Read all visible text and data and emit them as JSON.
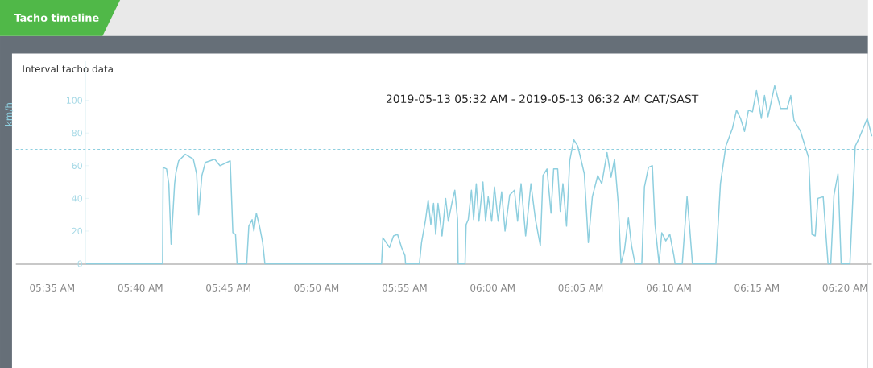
{
  "chart_data": {
    "type": "line",
    "title": "Interval tacho data",
    "subtitle": "2019-05-13 05:32 AM  -  2019-05-13 06:32 AM CAT/SAST",
    "ylabel": "km/h",
    "annotations": [
      "Tacho timeline"
    ],
    "xlim": [
      5.5489,
      6.3587
    ],
    "ylim": [
      0,
      124
    ],
    "xticks": [
      {
        "value": 5.5833,
        "label": "05:35 AM"
      },
      {
        "value": 5.6667,
        "label": "05:40 AM"
      },
      {
        "value": 5.75,
        "label": "05:45 AM"
      },
      {
        "value": 5.8333,
        "label": "05:50 AM"
      },
      {
        "value": 5.9167,
        "label": "05:55 AM"
      },
      {
        "value": 6.0,
        "label": "06:00 AM"
      },
      {
        "value": 6.0833,
        "label": "06:05 AM"
      },
      {
        "value": 6.1667,
        "label": "06:10 AM"
      },
      {
        "value": 6.25,
        "label": "06:15 AM"
      },
      {
        "value": 6.3333,
        "label": "06:20 AM"
      }
    ],
    "yticks": [
      0,
      20,
      40,
      60,
      80,
      100
    ],
    "ref_lines": [
      {
        "axis": "y",
        "value": 70,
        "color": "#8ecfdf",
        "line_style": "dashed"
      }
    ],
    "series": [
      {
        "color": "#8ecfdf",
        "x": [
          5.6153,
          5.6877,
          5.6883,
          5.6915,
          5.6936,
          5.6958,
          5.6991,
          5.7004,
          5.7029,
          5.7092,
          5.7168,
          5.7199,
          5.7218,
          5.7249,
          5.7282,
          5.737,
          5.742,
          5.7517,
          5.7542,
          5.7567,
          5.7582,
          5.7673,
          5.7693,
          5.7724,
          5.7741,
          5.7764,
          5.7794,
          5.7824,
          5.7845,
          5.8949,
          5.8961,
          5.9024,
          5.9062,
          5.91,
          5.9138,
          5.917,
          5.9176,
          5.9307,
          5.9327,
          5.9365,
          5.939,
          5.9415,
          5.9441,
          5.9461,
          5.9483,
          5.9521,
          5.9555,
          5.958,
          5.9617,
          5.9642,
          5.9668,
          5.9673,
          5.9739,
          5.9749,
          5.9769,
          5.9799,
          5.982,
          5.9845,
          5.987,
          5.9908,
          5.9933,
          5.9958,
          5.9991,
          6.0017,
          6.0052,
          6.0085,
          6.0117,
          6.0161,
          6.0206,
          6.0236,
          6.0269,
          6.0312,
          6.0362,
          6.0405,
          6.0451,
          6.0476,
          6.0514,
          6.0552,
          6.0577,
          6.0615,
          6.064,
          6.0665,
          6.0699,
          6.0729,
          6.0767,
          6.0805,
          6.0842,
          6.0867,
          6.0905,
          6.0943,
          6.0994,
          6.1032,
          6.1082,
          6.112,
          6.1153,
          6.1188,
          6.1214,
          6.1246,
          6.1284,
          6.1314,
          6.1347,
          6.1411,
          6.1436,
          6.1474,
          6.1511,
          6.1536,
          6.1574,
          6.16,
          6.1638,
          6.1676,
          6.1714,
          6.1726,
          6.1794,
          6.1839,
          6.1865,
          6.189,
          6.2112,
          6.2155,
          6.2206,
          6.2269,
          6.2307,
          6.2345,
          6.2383,
          6.242,
          6.2458,
          6.2496,
          6.2542,
          6.2572,
          6.2605,
          6.2668,
          6.2724,
          6.2786,
          6.282,
          6.285,
          6.2913,
          6.2989,
          6.3021,
          6.3052,
          6.3077,
          6.3127,
          6.3173,
          6.3199,
          6.3229,
          6.3267,
          6.3297,
          6.338,
          6.343,
          6.3468,
          6.3544,
          6.3587
        ],
        "values": [
          0,
          0,
          59,
          58,
          49,
          12,
          49,
          56,
          63,
          67,
          64,
          55,
          30,
          54,
          62,
          64,
          60,
          63,
          19,
          18,
          0,
          0,
          23,
          27,
          20,
          31,
          23,
          13,
          0,
          0,
          16,
          10,
          17,
          18,
          10,
          5,
          0,
          0,
          13,
          27,
          39,
          24,
          37,
          18,
          37,
          17,
          40,
          26,
          38,
          45,
          27,
          0,
          0,
          24,
          27,
          45,
          27,
          49,
          26,
          50,
          26,
          41,
          26,
          47,
          26,
          44,
          20,
          42,
          45,
          26,
          49,
          17,
          49,
          27,
          11,
          54,
          58,
          31,
          58,
          58,
          32,
          49,
          23,
          63,
          76,
          72,
          62,
          55,
          13,
          41,
          54,
          49,
          68,
          53,
          64,
          37,
          0,
          8,
          28,
          11,
          0,
          0,
          47,
          59,
          60,
          24,
          0,
          19,
          14,
          18,
          5,
          0,
          0,
          41,
          21,
          0,
          0,
          49,
          72,
          83,
          94,
          89,
          81,
          94,
          93,
          106,
          89,
          103,
          90,
          109,
          95,
          95,
          103,
          88,
          81,
          65,
          18,
          17,
          40,
          41,
          0,
          0,
          42,
          55,
          0,
          0,
          72,
          77,
          89,
          78
        ]
      }
    ]
  }
}
